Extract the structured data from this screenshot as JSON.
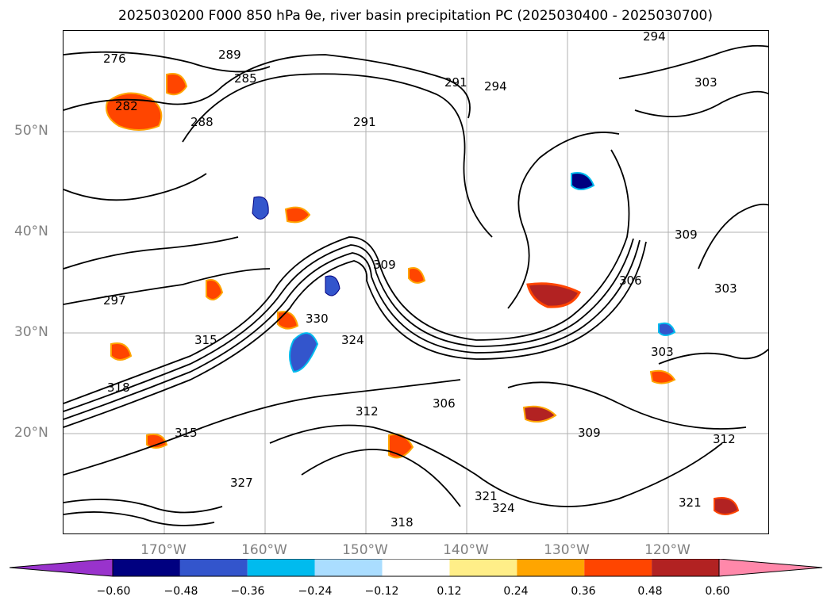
{
  "title": "2025030200 F000 850 hPa θe, river basin precipitation PC (2025030400 - 2025030700)",
  "lat_labels": [
    "50°N",
    "40°N",
    "30°N",
    "20°N"
  ],
  "lon_labels": [
    "170°W",
    "160°W",
    "150°W",
    "140°W",
    "130°W",
    "120°W"
  ],
  "contour_labels": [
    "276",
    "282",
    "285",
    "288",
    "289",
    "291",
    "291",
    "294",
    "294",
    "297",
    "303",
    "303",
    "303",
    "306",
    "306",
    "309",
    "309",
    "309",
    "312",
    "312",
    "315",
    "315",
    "318",
    "318",
    "321",
    "321",
    "324",
    "324",
    "327",
    "330"
  ],
  "colorbar": {
    "ticks": [
      "−0.60",
      "−0.48",
      "−0.36",
      "−0.24",
      "−0.12",
      "0.12",
      "0.24",
      "0.36",
      "0.48",
      "0.60"
    ],
    "colors": [
      "#9933cc",
      "#000080",
      "#3355cc",
      "#00bbee",
      "#aaddff",
      "#ffffff",
      "#ffee88",
      "#ffa500",
      "#ff4500",
      "#b22222",
      "#ff88aa"
    ]
  }
}
